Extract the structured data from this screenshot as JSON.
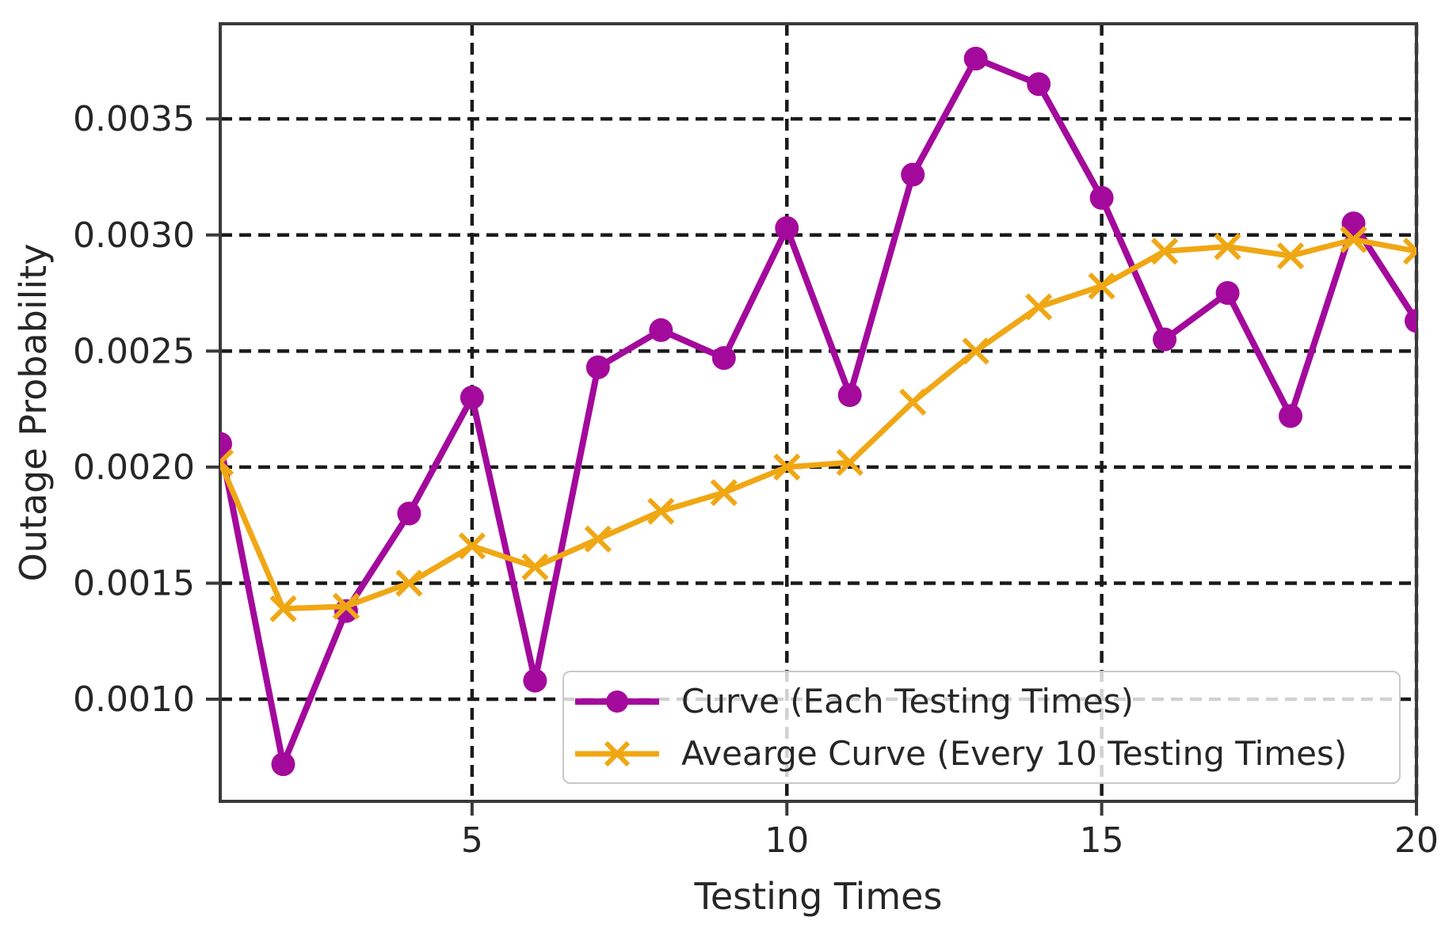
{
  "figure": {
    "background": "#ffffff",
    "text_color": "#262626",
    "spine_color": "#3a3a3a",
    "grid_color": "#1a1a1a"
  },
  "chart_data": {
    "type": "line",
    "title": "",
    "xlabel": "Testing Times",
    "ylabel": "Outage Probability",
    "x": [
      1,
      2,
      3,
      4,
      5,
      6,
      7,
      8,
      9,
      10,
      11,
      12,
      13,
      14,
      15,
      16,
      17,
      18,
      19,
      20
    ],
    "xlim": [
      1,
      20
    ],
    "ylim": [
      0.00056,
      0.00391
    ],
    "xticks": [
      5,
      10,
      15,
      20
    ],
    "xtick_labels": [
      "5",
      "10",
      "15",
      "20"
    ],
    "yticks": [
      0.001,
      0.0015,
      0.002,
      0.0025,
      0.003,
      0.0035
    ],
    "ytick_labels": [
      "0.0010",
      "0.0015",
      "0.0020",
      "0.0025",
      "0.0030",
      "0.0035"
    ],
    "grid": "dashed-both-axes",
    "legend_position": "inside-lower-right",
    "series": [
      {
        "name": "Curve (Each Testing Times)",
        "color": "#a30a9c",
        "marker": "circle",
        "values": [
          0.0021,
          0.00072,
          0.00138,
          0.0018,
          0.0023,
          0.00108,
          0.00243,
          0.00259,
          0.00247,
          0.00303,
          0.00231,
          0.00326,
          0.00376,
          0.00365,
          0.00316,
          0.00255,
          0.00275,
          0.00222,
          0.00305,
          0.00263
        ]
      },
      {
        "name": "Avearge Curve (Every 10 Testing Times)",
        "color": "#f0a714",
        "marker": "x",
        "values": [
          0.00202,
          0.00139,
          0.0014,
          0.0015,
          0.00166,
          0.00157,
          0.00169,
          0.00181,
          0.00189,
          0.002,
          0.00202,
          0.00228,
          0.0025,
          0.00269,
          0.00278,
          0.00293,
          0.00295,
          0.00291,
          0.00298,
          0.00293
        ]
      }
    ]
  }
}
